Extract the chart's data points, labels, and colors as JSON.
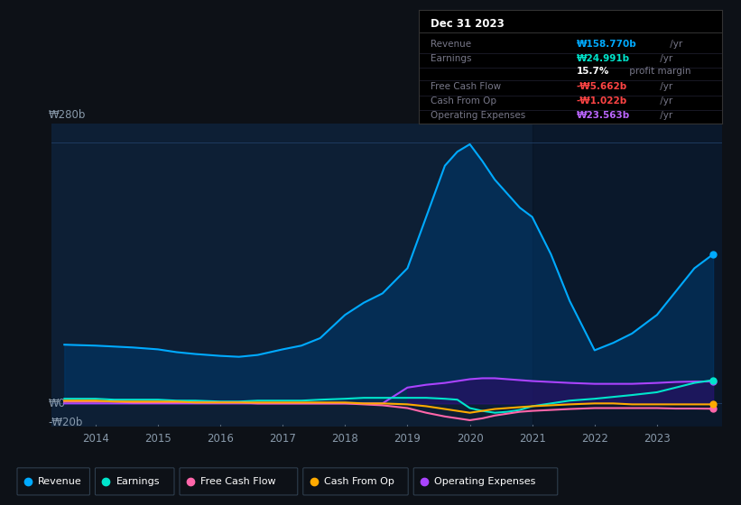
{
  "bg_color": "#0d1117",
  "plot_bg_color": "#0d1f35",
  "grid_color": "#1e3a5f",
  "ylabel_top": "₩280b",
  "ylabel_zero": "₩0",
  "ylabel_neg": "-₩20b",
  "x_ticks": [
    "2014",
    "2015",
    "2016",
    "2017",
    "2018",
    "2019",
    "2020",
    "2021",
    "2022",
    "2023"
  ],
  "legend": [
    {
      "label": "Revenue",
      "color": "#00aaff"
    },
    {
      "label": "Earnings",
      "color": "#00e5cc"
    },
    {
      "label": "Free Cash Flow",
      "color": "#ff66aa"
    },
    {
      "label": "Cash From Op",
      "color": "#ffaa00"
    },
    {
      "label": "Operating Expenses",
      "color": "#aa44ff"
    }
  ],
  "info_box": {
    "date": "Dec 31 2023",
    "rows": [
      {
        "label": "Revenue",
        "value": "₩158.770b",
        "unit": " /yr",
        "value_color": "#00aaff"
      },
      {
        "label": "Earnings",
        "value": "₩24.991b",
        "unit": " /yr",
        "value_color": "#00e5cc"
      },
      {
        "label": "",
        "value": "15.7%",
        "unit": " profit margin",
        "value_color": "#ffffff"
      },
      {
        "label": "Free Cash Flow",
        "value": "-₩5.662b",
        "unit": " /yr",
        "value_color": "#ff4444"
      },
      {
        "label": "Cash From Op",
        "value": "-₩1.022b",
        "unit": " /yr",
        "value_color": "#ff4444"
      },
      {
        "label": "Operating Expenses",
        "value": "₩23.563b",
        "unit": " /yr",
        "value_color": "#bb66ff"
      }
    ]
  },
  "revenue_color": "#00aaff",
  "revenue_fill": "#003a6e",
  "earnings_color": "#00e5cc",
  "fcf_color": "#ff66aa",
  "cfo_color": "#ffaa00",
  "opex_color": "#aa44ff",
  "opex_fill": "#3a006e"
}
